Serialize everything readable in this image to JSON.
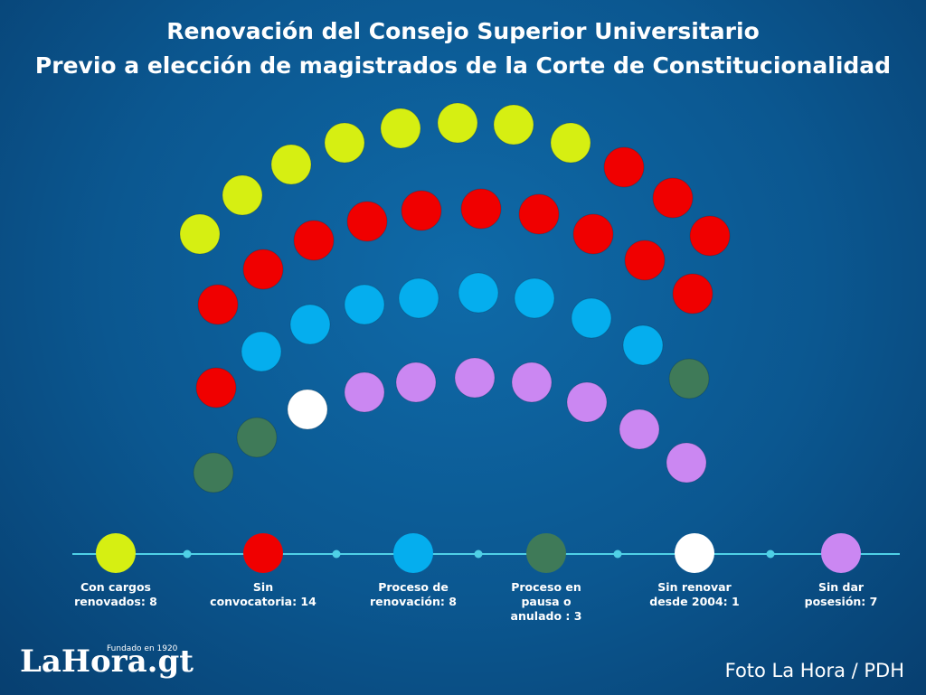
{
  "chart_data": {
    "type": "parliament",
    "title": "Renovación del Consejo Superior Universitario",
    "subtitle": "Previo a elección de magistrados de la Corte de Constitucionalidad",
    "categories": [
      "Con cargos\nrenovados: 8",
      "Sin\nconvocatoria: 14",
      "Proceso de\nrenovación: 8",
      "Proceso en\npausa o\nanulado : 3",
      "Sin renovar\ndesde 2004: 1",
      "Sin dar\nposesión:  7"
    ],
    "values": [
      8,
      14,
      8,
      3,
      1,
      7
    ],
    "colors": [
      "#d6ef12",
      "#f00000",
      "#05aeee",
      "#3f7a58",
      "#ffffff",
      "#cb87f2"
    ]
  },
  "logo": {
    "name": "LaHora.gt",
    "tagline": "Fundado en 1920"
  },
  "credit": "Foto La Hora / PDH"
}
